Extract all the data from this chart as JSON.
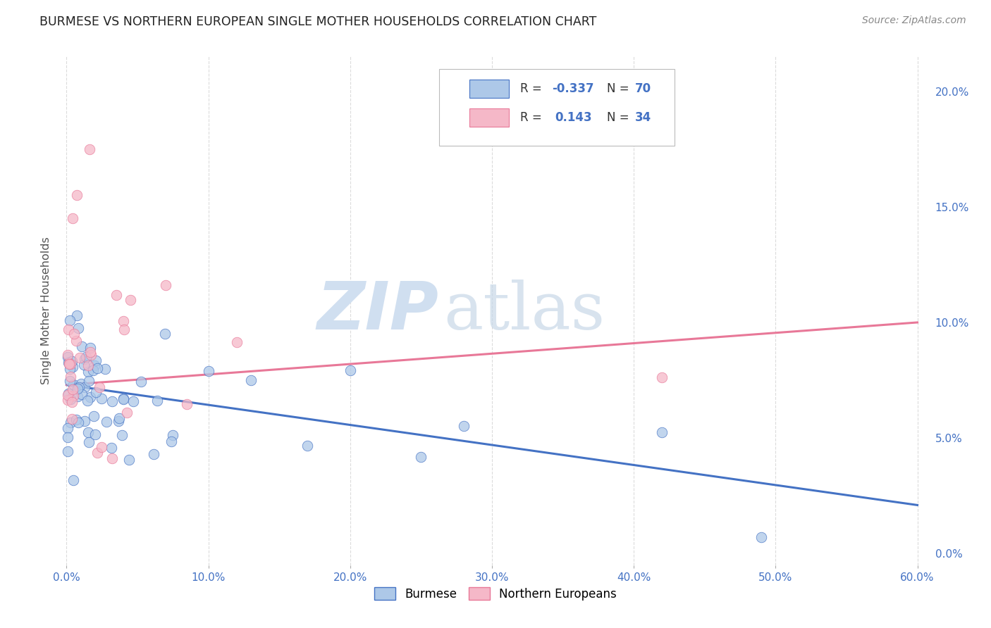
{
  "title": "BURMESE VS NORTHERN EUROPEAN SINGLE MOTHER HOUSEHOLDS CORRELATION CHART",
  "source": "Source: ZipAtlas.com",
  "ylabel_label": "Single Mother Households",
  "xlim": [
    0.0,
    0.6
  ],
  "ylim": [
    0.0,
    0.21
  ],
  "burmese_color": "#adc8e8",
  "northern_color": "#f5b8c8",
  "burmese_line_color": "#4472c4",
  "northern_line_color": "#e87898",
  "burmese_R": -0.337,
  "burmese_N": 70,
  "northern_R": 0.143,
  "northern_N": 34,
  "watermark_zip": "ZIP",
  "watermark_atlas": "atlas",
  "background_color": "#ffffff",
  "grid_color": "#d8d8d8",
  "tick_color": "#4472c4",
  "title_color": "#222222",
  "ylabel_color": "#555555"
}
